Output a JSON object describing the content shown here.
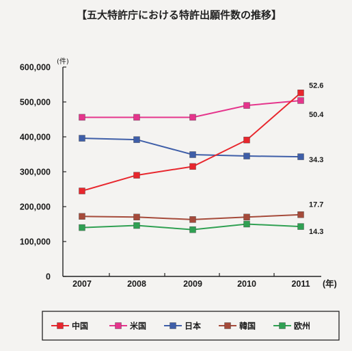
{
  "chart_data": {
    "type": "line",
    "title": "【五大特許庁における特許出願件数の推移】",
    "ylabel": "(件)",
    "xlabel": "(年)",
    "x": [
      "2007",
      "2008",
      "2009",
      "2010",
      "2011"
    ],
    "ylim": [
      0,
      600000
    ],
    "yticks": [
      "0",
      "100,000",
      "200,000",
      "300,000",
      "400,000",
      "500,000",
      "600,000"
    ],
    "yticks_values": [
      0,
      100000,
      200000,
      300000,
      400000,
      500000,
      600000
    ],
    "grid": false,
    "legend_position": "bottom",
    "series": [
      {
        "name": "中国",
        "color": "#e8262d",
        "values": [
          245000,
          290000,
          315000,
          391000,
          526000
        ]
      },
      {
        "name": "米国",
        "color": "#e5348c",
        "values": [
          456000,
          456000,
          456000,
          490000,
          504000
        ]
      },
      {
        "name": "日本",
        "color": "#3e5ea8",
        "values": [
          396000,
          392000,
          349000,
          345000,
          343000
        ]
      },
      {
        "name": "韓国",
        "color": "#a54a3a",
        "values": [
          172000,
          170000,
          163000,
          170000,
          177000
        ]
      },
      {
        "name": "欧州",
        "color": "#2fa052",
        "values": [
          140000,
          146000,
          134000,
          150000,
          143000
        ]
      }
    ],
    "data_labels": [
      {
        "series": "中国",
        "text": "52.6"
      },
      {
        "series": "米国",
        "text": "50.4"
      },
      {
        "series": "日本",
        "text": "34.3"
      },
      {
        "series": "韓国",
        "text": "17.7"
      },
      {
        "series": "欧州",
        "text": "14.3"
      }
    ]
  }
}
